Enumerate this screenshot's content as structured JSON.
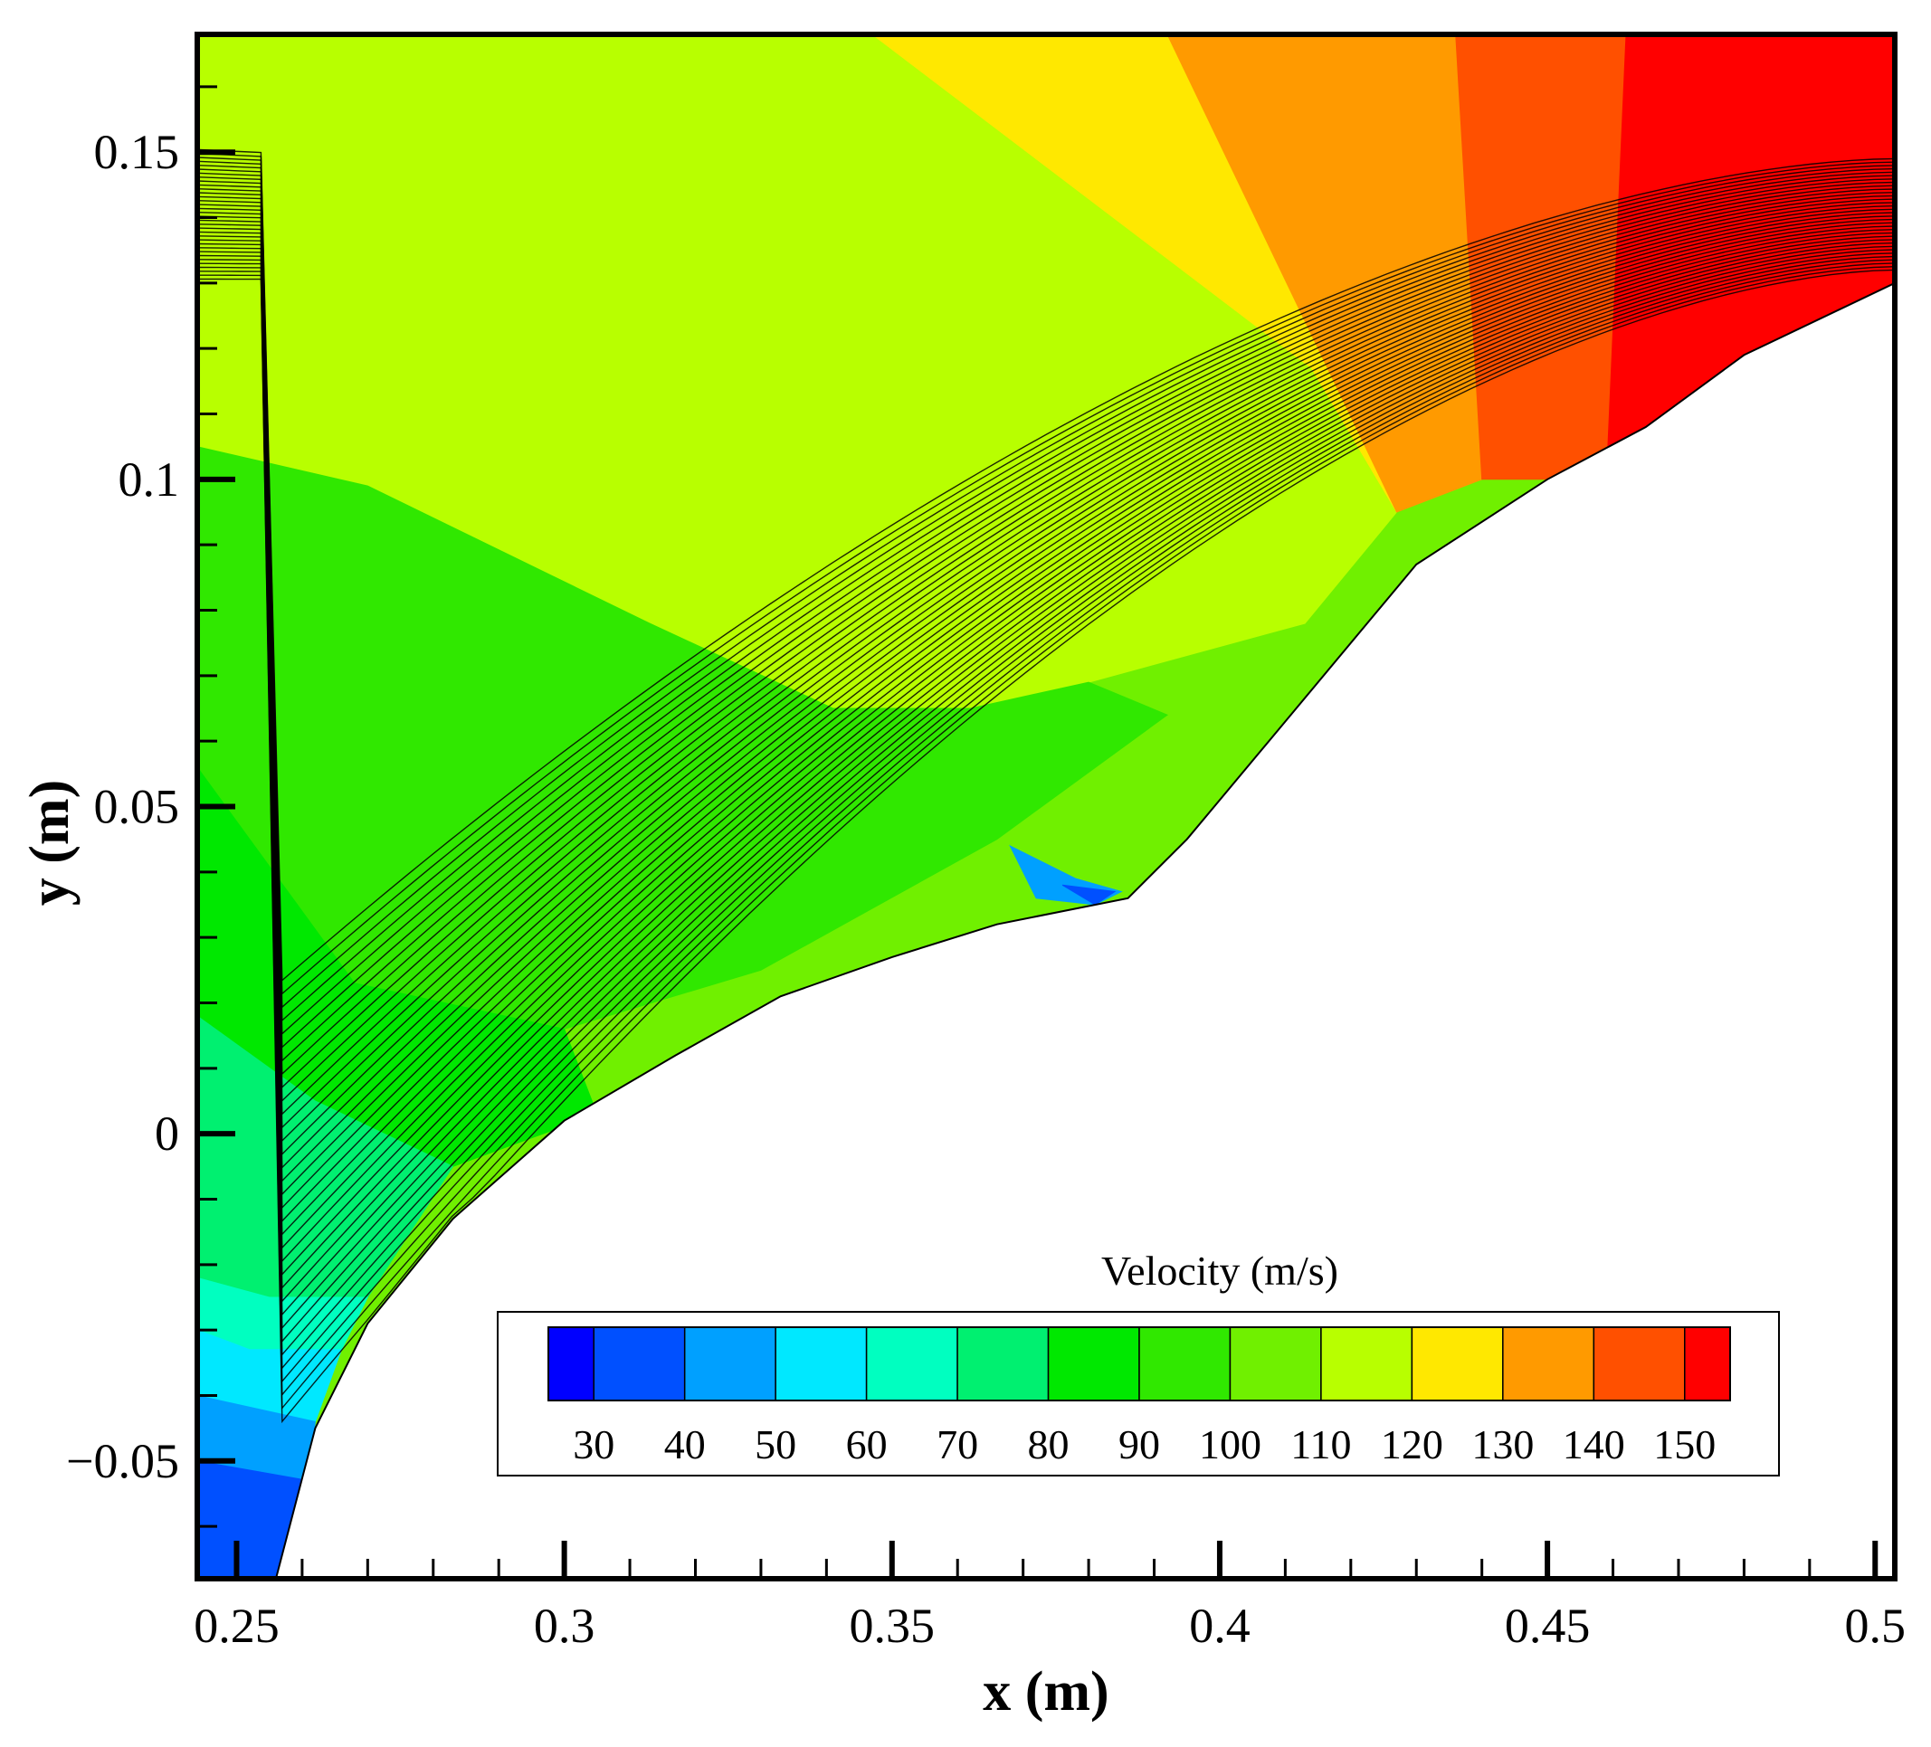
{
  "chart_data": {
    "type": "heatmap",
    "subtype": "contour-with-streamlines",
    "xlabel": "x (m)",
    "ylabel": "y (m)",
    "xlim": [
      0.244,
      0.503
    ],
    "ylim": [
      -0.068,
      0.168
    ],
    "x_ticks": [
      {
        "value": 0.25,
        "label": "0.25"
      },
      {
        "value": 0.3,
        "label": "0.3"
      },
      {
        "value": 0.35,
        "label": "0.35"
      },
      {
        "value": 0.4,
        "label": "0.4"
      },
      {
        "value": 0.45,
        "label": "0.45"
      },
      {
        "value": 0.5,
        "label": "0.5"
      }
    ],
    "y_ticks": [
      {
        "value": -0.05,
        "label": "−0.05"
      },
      {
        "value": 0,
        "label": "0"
      },
      {
        "value": 0.05,
        "label": "0.05"
      },
      {
        "value": 0.1,
        "label": "0.1"
      },
      {
        "value": 0.15,
        "label": "0.15"
      }
    ],
    "colorbar": {
      "title": "Velocity (m/s)",
      "placement": "bottom-right",
      "range": [
        25,
        155
      ],
      "levels": [
        {
          "from": 25,
          "to": 30,
          "color": "#0000ff"
        },
        {
          "from": 30,
          "to": 40,
          "color": "#0050ff"
        },
        {
          "from": 40,
          "to": 50,
          "color": "#00a0ff"
        },
        {
          "from": 50,
          "to": 60,
          "color": "#00e8ff"
        },
        {
          "from": 60,
          "to": 70,
          "color": "#00ffc0"
        },
        {
          "from": 70,
          "to": 80,
          "color": "#00f070"
        },
        {
          "from": 80,
          "to": 90,
          "color": "#00e800"
        },
        {
          "from": 90,
          "to": 100,
          "color": "#30e800"
        },
        {
          "from": 100,
          "to": 110,
          "color": "#70f000"
        },
        {
          "from": 110,
          "to": 120,
          "color": "#b8ff00"
        },
        {
          "from": 120,
          "to": 130,
          "color": "#ffe800"
        },
        {
          "from": 130,
          "to": 140,
          "color": "#ff9a00"
        },
        {
          "from": 140,
          "to": 150,
          "color": "#ff5000"
        },
        {
          "from": 150,
          "to": 155,
          "color": "#ff0000"
        }
      ],
      "tick_labels": [
        "30",
        "40",
        "50",
        "60",
        "70",
        "80",
        "90",
        "100",
        "110",
        "120",
        "130",
        "140",
        "150"
      ]
    },
    "regions": [
      {
        "value": 105,
        "polygon": [
          [
            0.244,
            0.168
          ],
          [
            0.503,
            0.168
          ],
          [
            0.503,
            -0.068
          ],
          [
            0.244,
            -0.068
          ]
        ]
      },
      {
        "value": 115,
        "polygon": [
          [
            0.256,
            0.168
          ],
          [
            0.347,
            0.168
          ],
          [
            0.414,
            0.117
          ],
          [
            0.427,
            0.095
          ],
          [
            0.413,
            0.078
          ],
          [
            0.38,
            0.069
          ],
          [
            0.362,
            0.065
          ],
          [
            0.341,
            0.065
          ],
          [
            0.313,
            0.078
          ],
          [
            0.27,
            0.099
          ],
          [
            0.244,
            0.105
          ],
          [
            0.244,
            0.168
          ]
        ]
      },
      {
        "value": 125,
        "polygon": [
          [
            0.347,
            0.168
          ],
          [
            0.392,
            0.168
          ],
          [
            0.427,
            0.095
          ],
          [
            0.414,
            0.117
          ]
        ]
      },
      {
        "value": 135,
        "polygon": [
          [
            0.392,
            0.168
          ],
          [
            0.436,
            0.168
          ],
          [
            0.44,
            0.1
          ],
          [
            0.427,
            0.095
          ]
        ]
      },
      {
        "value": 145,
        "polygon": [
          [
            0.436,
            0.168
          ],
          [
            0.462,
            0.168
          ],
          [
            0.459,
            0.1
          ],
          [
            0.44,
            0.1
          ]
        ]
      },
      {
        "value": 155,
        "polygon": [
          [
            0.462,
            0.168
          ],
          [
            0.503,
            0.168
          ],
          [
            0.503,
            0.13
          ],
          [
            0.459,
            0.1
          ]
        ]
      },
      {
        "value": 95,
        "polygon": [
          [
            0.244,
            0.105
          ],
          [
            0.27,
            0.099
          ],
          [
            0.313,
            0.078
          ],
          [
            0.341,
            0.065
          ],
          [
            0.362,
            0.065
          ],
          [
            0.38,
            0.069
          ],
          [
            0.392,
            0.064
          ],
          [
            0.366,
            0.045
          ],
          [
            0.33,
            0.025
          ],
          [
            0.3,
            0.016
          ],
          [
            0.268,
            0.023
          ],
          [
            0.244,
            0.056
          ]
        ]
      },
      {
        "value": 85,
        "polygon": [
          [
            0.244,
            0.056
          ],
          [
            0.268,
            0.023
          ],
          [
            0.3,
            0.016
          ],
          [
            0.305,
            0.003
          ],
          [
            0.283,
            -0.005
          ],
          [
            0.262,
            0.005
          ],
          [
            0.244,
            0.018
          ]
        ]
      },
      {
        "value": 75,
        "polygon": [
          [
            0.244,
            0.018
          ],
          [
            0.262,
            0.005
          ],
          [
            0.283,
            -0.005
          ],
          [
            0.27,
            -0.025
          ],
          [
            0.255,
            -0.025
          ],
          [
            0.244,
            -0.022
          ]
        ]
      },
      {
        "value": 65,
        "polygon": [
          [
            0.244,
            -0.022
          ],
          [
            0.255,
            -0.025
          ],
          [
            0.27,
            -0.025
          ],
          [
            0.266,
            -0.033
          ],
          [
            0.252,
            -0.033
          ],
          [
            0.244,
            -0.03
          ]
        ]
      },
      {
        "value": 55,
        "polygon": [
          [
            0.244,
            -0.03
          ],
          [
            0.252,
            -0.033
          ],
          [
            0.266,
            -0.033
          ],
          [
            0.262,
            -0.044
          ],
          [
            0.244,
            -0.04
          ]
        ]
      },
      {
        "value": 45,
        "polygon": [
          [
            0.244,
            -0.04
          ],
          [
            0.262,
            -0.044
          ],
          [
            0.261,
            -0.053
          ],
          [
            0.244,
            -0.05
          ]
        ]
      },
      {
        "value": 35,
        "polygon": [
          [
            0.244,
            -0.05
          ],
          [
            0.261,
            -0.053
          ],
          [
            0.256,
            -0.068
          ],
          [
            0.244,
            -0.068
          ]
        ]
      },
      {
        "value": 45,
        "polygon": [
          [
            0.368,
            0.044
          ],
          [
            0.378,
            0.039
          ],
          [
            0.385,
            0.037
          ],
          [
            0.381,
            0.035
          ],
          [
            0.372,
            0.036
          ]
        ]
      },
      {
        "value": 35,
        "polygon": [
          [
            0.376,
            0.038
          ],
          [
            0.384,
            0.037
          ],
          [
            0.381,
            0.035
          ]
        ]
      }
    ],
    "body_outline": [
      [
        0.256,
        -0.068
      ],
      [
        0.262,
        -0.045
      ],
      [
        0.27,
        -0.029
      ],
      [
        0.283,
        -0.013
      ],
      [
        0.3,
        0.002
      ],
      [
        0.317,
        0.012
      ],
      [
        0.333,
        0.021
      ],
      [
        0.35,
        0.027
      ],
      [
        0.366,
        0.032
      ],
      [
        0.386,
        0.036
      ],
      [
        0.395,
        0.045
      ],
      [
        0.41,
        0.063
      ],
      [
        0.43,
        0.087
      ],
      [
        0.45,
        0.1
      ],
      [
        0.465,
        0.108
      ],
      [
        0.48,
        0.119
      ],
      [
        0.503,
        0.13
      ]
    ],
    "streamlines": {
      "count": 34,
      "inlet_y_range": [
        -0.06,
        0.012
      ],
      "outlet_y_range": [
        0.132,
        0.149
      ],
      "inlet_x": 0.244,
      "outlet_x": 0.503
    }
  }
}
